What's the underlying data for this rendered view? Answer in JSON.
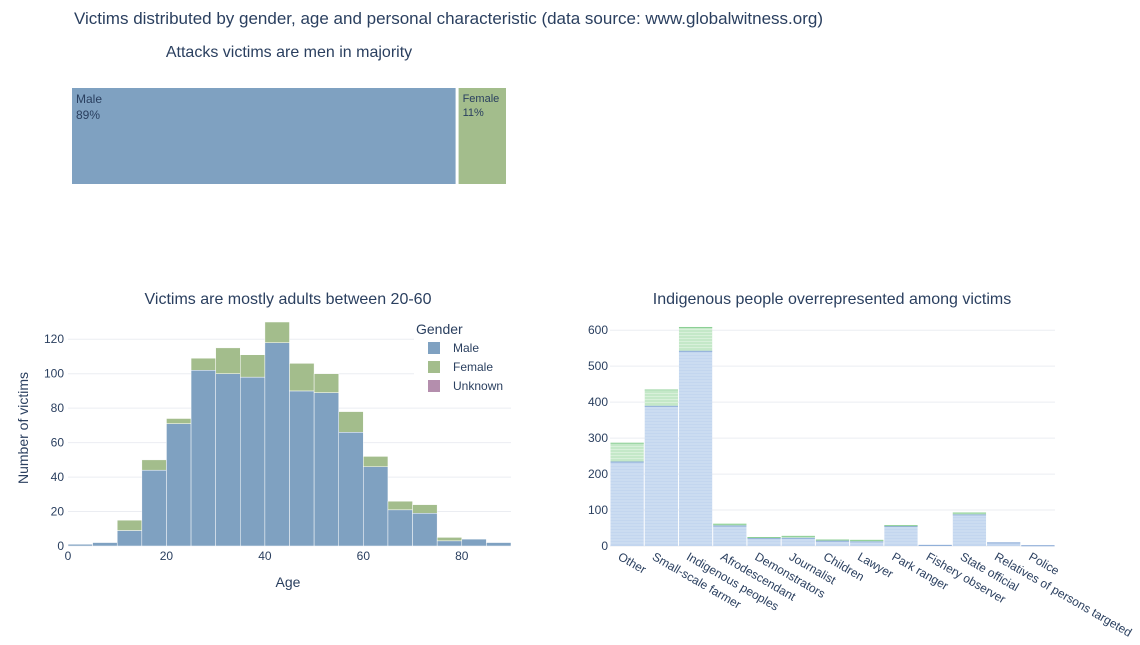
{
  "figure": {
    "title": "Victims distributed by gender, age and personal characteristic (data source: www.globalwitness.org)"
  },
  "colors": {
    "male": "#7fa1c1",
    "female": "#a3bd8c",
    "unknown": "#b48ead",
    "char_male_fill": "#c3d6ef",
    "char_female_fill": "#c4e8c8",
    "char_male_line": "#8aaad6",
    "char_female_line": "#8ccf95"
  },
  "chart_data": [
    {
      "type": "treemap",
      "title": "Attacks victims are men in majority",
      "items": [
        {
          "label": "Male",
          "percent_label": "89%",
          "value": 89,
          "color_key": "male"
        },
        {
          "label": "Female",
          "percent_label": "11%",
          "value": 11,
          "color_key": "female"
        }
      ]
    },
    {
      "type": "bar",
      "stacked": true,
      "title": "Victims are mostly adults between 20-60",
      "xlabel": "Age",
      "ylabel": "Number of victims",
      "xlim": [
        0,
        90
      ],
      "ylim": [
        0,
        130
      ],
      "xticks": [
        0,
        20,
        40,
        60,
        80
      ],
      "yticks": [
        0,
        20,
        40,
        60,
        80,
        100,
        120
      ],
      "bin_width": 5,
      "bin_starts": [
        0,
        5,
        10,
        15,
        20,
        25,
        30,
        35,
        40,
        45,
        50,
        55,
        60,
        65,
        70,
        75,
        80,
        85
      ],
      "legend": {
        "title": "Gender",
        "position": "top-right"
      },
      "series": [
        {
          "name": "Male",
          "color_key": "male",
          "values": [
            1,
            2,
            9,
            44,
            71,
            102,
            100,
            98,
            118,
            90,
            89,
            66,
            46,
            21,
            19,
            3,
            4,
            2
          ]
        },
        {
          "name": "Female",
          "color_key": "female",
          "values": [
            0,
            0,
            6,
            6,
            3,
            7,
            15,
            13,
            12,
            16,
            11,
            12,
            6,
            5,
            5,
            2,
            0,
            0
          ]
        },
        {
          "name": "Unknown",
          "color_key": "unknown",
          "values": [
            0,
            0,
            0,
            0,
            0,
            0,
            0,
            0,
            0,
            0,
            0,
            0,
            0,
            0,
            0,
            0,
            0,
            0
          ]
        }
      ]
    },
    {
      "type": "bar",
      "stacked": true,
      "title": "Indigenous people overrepresented among victims",
      "xlabel": "",
      "ylabel": "",
      "ylim": [
        0,
        620
      ],
      "yticks": [
        0,
        100,
        200,
        300,
        400,
        500,
        600
      ],
      "categories": [
        "Other",
        "Small-scale farmer",
        "Indigenous peoples",
        "Afrodescendant",
        "Demonstrators",
        "Journalist",
        "Children",
        "Lawyer",
        "Park ranger",
        "Fishery observer",
        "State official",
        "Relatives of persons targeted",
        "Police"
      ],
      "series": [
        {
          "name": "Male",
          "color_key": "char_male_fill",
          "values": [
            235,
            390,
            543,
            57,
            22,
            23,
            15,
            13,
            56,
            3,
            88,
            10,
            2
          ]
        },
        {
          "name": "Female",
          "color_key": "char_female_fill",
          "values": [
            52,
            45,
            66,
            5,
            3,
            5,
            3,
            4,
            2,
            0,
            5,
            0,
            0
          ]
        }
      ]
    }
  ]
}
